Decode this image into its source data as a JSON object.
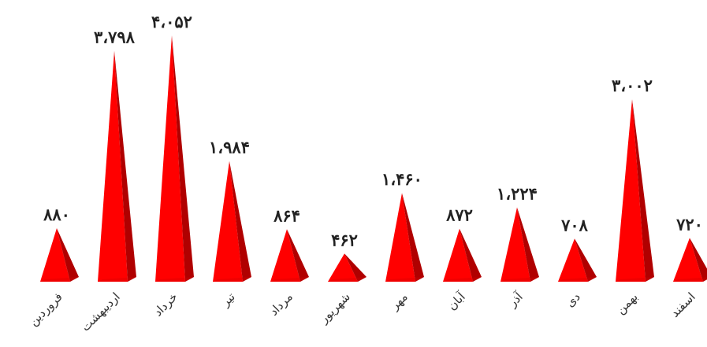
{
  "chart_data": {
    "type": "bar",
    "bar_shape": "pyramid",
    "categories": [
      "فروردین",
      "اردیبهشت",
      "خرداد",
      "تیر",
      "مرداد",
      "شهریور",
      "مهر",
      "آبان",
      "آذر",
      "دی",
      "بهمن",
      "اسفند"
    ],
    "values": [
      880,
      3798,
      4052,
      1984,
      864,
      462,
      1460,
      872,
      1224,
      708,
      3002,
      720
    ],
    "value_labels": [
      "۸۸۰",
      "۳،۷۹۸",
      "۴،۰۵۲",
      "۱،۹۸۴",
      "۸۶۴",
      "۴۶۲",
      "۱،۴۶۰",
      "۸۷۲",
      "۱،۲۲۴",
      "۷۰۸",
      "۳،۰۰۲",
      "۷۲۰"
    ],
    "ylim": [
      0,
      4052
    ],
    "grid": false,
    "legend": "none",
    "colors": {
      "front": "#ff0000",
      "side": "#b00000",
      "base": "#d40000",
      "edge": "#c8c8c8"
    }
  }
}
